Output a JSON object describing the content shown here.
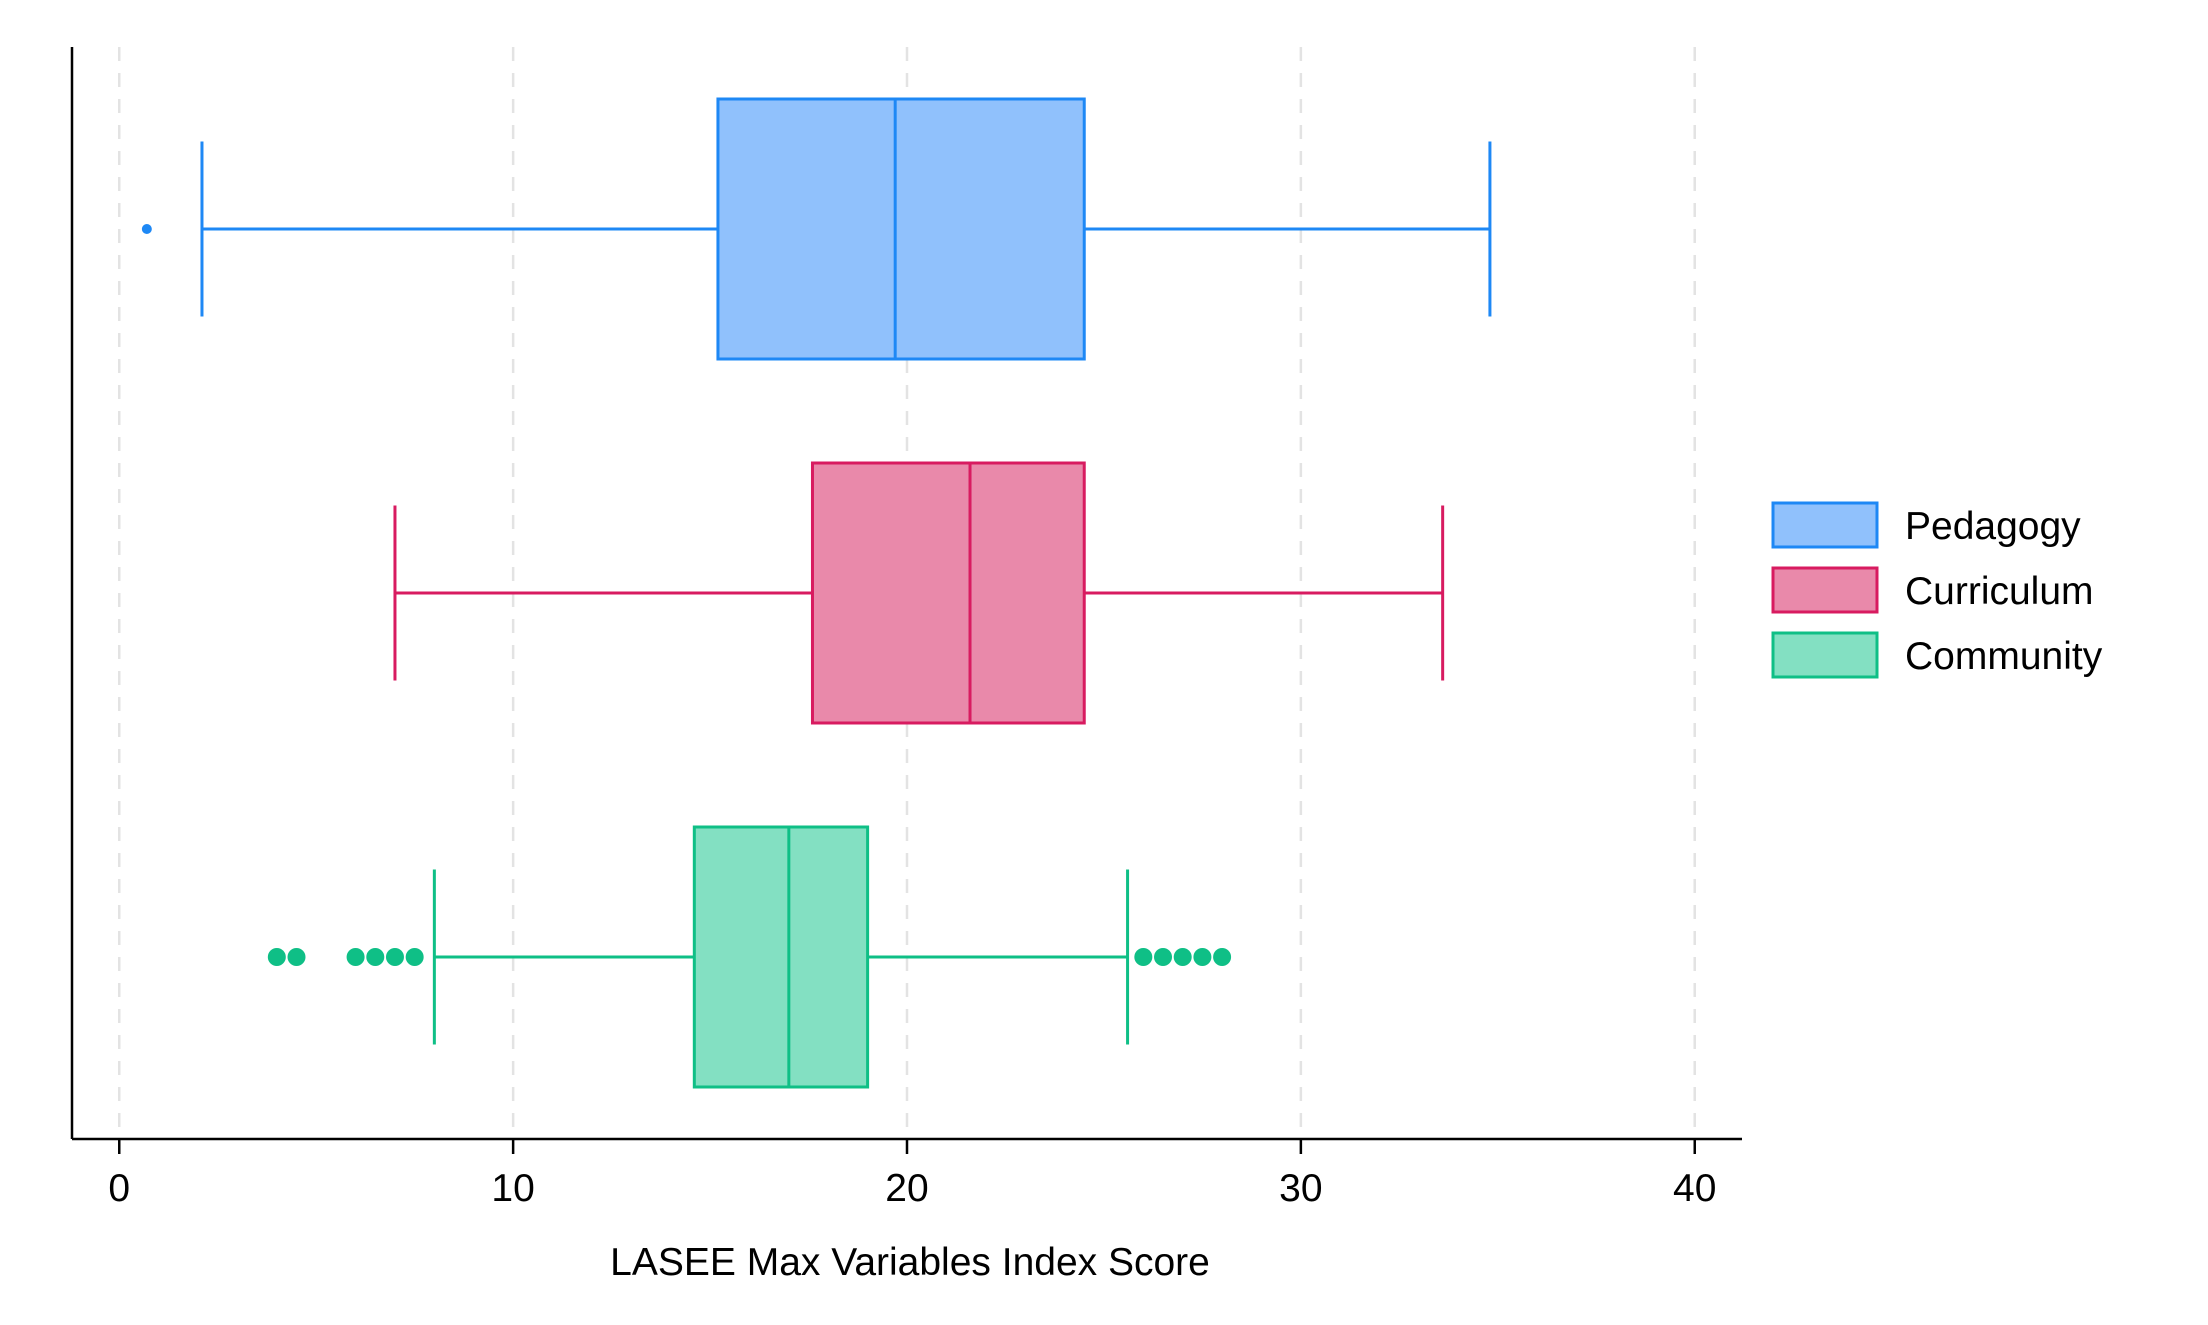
{
  "chart_data": {
    "type": "boxplot",
    "orientation": "horizontal",
    "xlabel": "LASEE Max Variables Index Score",
    "ylabel": "",
    "xlim": [
      -1.2,
      41.2
    ],
    "xticks": [
      0,
      10,
      20,
      30,
      40
    ],
    "grid": {
      "x": true,
      "y": false,
      "style": "dashed"
    },
    "legend": {
      "position": "right"
    },
    "series": [
      {
        "name": "Pedagogy",
        "color": "#1E88F5",
        "fill": "#90C1FC",
        "whisker_low": 2.1,
        "q1": 15.2,
        "median": 19.7,
        "q3": 24.5,
        "whisker_high": 34.8,
        "outliers": [
          0.7
        ]
      },
      {
        "name": "Curriculum",
        "color": "#D81B60",
        "fill": "#E989AA",
        "whisker_low": 7.0,
        "q1": 17.6,
        "median": 21.6,
        "q3": 24.5,
        "whisker_high": 33.6,
        "outliers": []
      },
      {
        "name": "Community",
        "color": "#0FBF86",
        "fill": "#83E0C2",
        "whisker_low": 8.0,
        "q1": 14.6,
        "median": 17.0,
        "q3": 19.0,
        "whisker_high": 25.6,
        "outliers": [
          4.0,
          4.5,
          6.0,
          6.5,
          7.0,
          7.5,
          26.0,
          26.5,
          27.0,
          27.5,
          28.0
        ]
      }
    ]
  }
}
